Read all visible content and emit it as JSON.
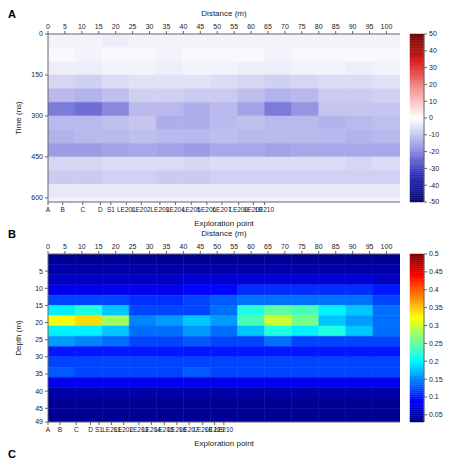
{
  "chart_data": [
    {
      "type": "heatmap",
      "title": "A",
      "x_label": "Distance (m)",
      "x2_label": "Exploration point",
      "y_label": "Time (ns)",
      "xlim": [
        0,
        104
      ],
      "xticks": [
        0,
        5,
        10,
        15,
        20,
        25,
        30,
        35,
        40,
        45,
        50,
        55,
        60,
        65,
        70,
        75,
        80,
        85,
        90,
        95,
        100
      ],
      "x2ticks": [
        {
          "value": 0,
          "label": "A"
        },
        {
          "value": 7,
          "label": "B"
        },
        {
          "value": 16.6,
          "label": "C"
        },
        {
          "value": 25,
          "label": "D"
        },
        {
          "value": 30,
          "label": "S1"
        },
        {
          "value": 37.4,
          "label": "LE201"
        },
        {
          "value": 44.5,
          "label": "LE202"
        },
        {
          "value": 53.4,
          "label": "LE203"
        },
        {
          "value": 60.8,
          "label": "LE204"
        },
        {
          "value": 68.4,
          "label": "LE205"
        },
        {
          "value": 75.8,
          "label": "LE206"
        },
        {
          "value": 83,
          "label": "LE207"
        },
        {
          "value": 91,
          "label": "LE208"
        },
        {
          "value": 98,
          "label": "LE209"
        },
        {
          "value": 103.4,
          "label": "LE210"
        }
      ],
      "ylim": [
        0,
        615
      ],
      "yticks": [
        0,
        150,
        300,
        450,
        600
      ],
      "x_bins": [
        0,
        8,
        16,
        24,
        32,
        40,
        48,
        56,
        64,
        72,
        80,
        88,
        96,
        104
      ],
      "y_bins": [
        0,
        50,
        100,
        150,
        200,
        250,
        300,
        350,
        400,
        450,
        500,
        550,
        600,
        615
      ],
      "cells": [
        [
          -2,
          -2,
          -3,
          -2,
          -2,
          -2,
          -2,
          -2,
          -2,
          -2,
          -2,
          -2,
          -2
        ],
        [
          -1,
          -2,
          -1,
          -1,
          -2,
          -1,
          -1,
          -1,
          -2,
          -1,
          -1,
          -1,
          -1
        ],
        [
          -3,
          -3,
          -2,
          -2,
          -3,
          -2,
          -2,
          -3,
          -3,
          -2,
          -2,
          -3,
          -2
        ],
        [
          -7,
          -8,
          -6,
          -5,
          -5,
          -5,
          -6,
          -7,
          -8,
          -7,
          -6,
          -6,
          -5
        ],
        [
          -12,
          -13,
          -11,
          -8,
          -8,
          -9,
          -9,
          -11,
          -13,
          -12,
          -9,
          -9,
          -8
        ],
        [
          -22,
          -24,
          -20,
          -12,
          -12,
          -14,
          -12,
          -16,
          -22,
          -18,
          -10,
          -10,
          -10
        ],
        [
          -12,
          -12,
          -11,
          -10,
          -14,
          -14,
          -12,
          -11,
          -12,
          -12,
          -13,
          -12,
          -11
        ],
        [
          -13,
          -12,
          -12,
          -11,
          -12,
          -12,
          -11,
          -12,
          -12,
          -12,
          -12,
          -13,
          -12
        ],
        [
          -17,
          -17,
          -16,
          -15,
          -16,
          -17,
          -15,
          -15,
          -16,
          -15,
          -15,
          -15,
          -15
        ],
        [
          -7,
          -7,
          -6,
          -6,
          -6,
          -7,
          -6,
          -6,
          -6,
          -6,
          -6,
          -7,
          -6
        ],
        [
          -9,
          -9,
          -8,
          -8,
          -9,
          -9,
          -8,
          -8,
          -8,
          -8,
          -8,
          -8,
          -8
        ],
        [
          -4,
          -4,
          -4,
          -4,
          -4,
          -4,
          -4,
          -4,
          -4,
          -4,
          -4,
          -4,
          -4
        ],
        [
          -2,
          -2,
          -2,
          -2,
          -2,
          -2,
          -2,
          -2,
          -2,
          -2,
          -2,
          -2,
          -2
        ]
      ],
      "colorbar": {
        "lim": [
          -50,
          50
        ],
        "ticks": [
          50,
          40,
          30,
          20,
          10,
          0,
          -10,
          -20,
          -30,
          -40,
          -50
        ]
      }
    },
    {
      "type": "heatmap",
      "title": "B",
      "x_label": "Distance (m)",
      "x2_label": "Exploration point",
      "y_label": "Depth (m)",
      "xlim": [
        0,
        104
      ],
      "xticks": [
        0,
        5,
        10,
        15,
        20,
        25,
        30,
        35,
        40,
        45,
        50,
        55,
        60,
        65,
        70,
        75,
        80,
        85,
        90,
        95,
        100
      ],
      "x2ticks": [
        {
          "value": 0,
          "label": "A"
        },
        {
          "value": 7,
          "label": "B"
        },
        {
          "value": 16.6,
          "label": "C"
        },
        {
          "value": 25,
          "label": "D"
        },
        {
          "value": 30,
          "label": "S1"
        },
        {
          "value": 37.4,
          "label": "LE201"
        },
        {
          "value": 44.5,
          "label": "LE202"
        },
        {
          "value": 53.4,
          "label": "LE203"
        },
        {
          "value": 60.8,
          "label": "LE204"
        },
        {
          "value": 68.4,
          "label": "LE205"
        },
        {
          "value": 75.8,
          "label": "LE206"
        },
        {
          "value": 83,
          "label": "LE207"
        },
        {
          "value": 91,
          "label": "LE208"
        },
        {
          "value": 98,
          "label": "LE209"
        },
        {
          "value": 103.4,
          "label": "LE210"
        }
      ],
      "ylim": [
        0,
        49
      ],
      "yticks": [
        5,
        10,
        15,
        20,
        25,
        30,
        35,
        40,
        45,
        49
      ],
      "x_bins": [
        0,
        8,
        16,
        24,
        32,
        40,
        48,
        56,
        64,
        72,
        80,
        88,
        96,
        104
      ],
      "y_bins": [
        0,
        3,
        6,
        9,
        12,
        15,
        18,
        21,
        24,
        27,
        30,
        33,
        36,
        39,
        42,
        45,
        49
      ],
      "cells": [
        [
          0.04,
          0.04,
          0.04,
          0.04,
          0.04,
          0.04,
          0.04,
          0.04,
          0.04,
          0.04,
          0.04,
          0.04,
          0.04
        ],
        [
          0.05,
          0.05,
          0.05,
          0.05,
          0.05,
          0.05,
          0.05,
          0.05,
          0.05,
          0.05,
          0.05,
          0.05,
          0.05
        ],
        [
          0.06,
          0.06,
          0.06,
          0.06,
          0.06,
          0.07,
          0.07,
          0.07,
          0.07,
          0.07,
          0.07,
          0.07,
          0.06
        ],
        [
          0.08,
          0.08,
          0.08,
          0.08,
          0.08,
          0.09,
          0.09,
          0.11,
          0.11,
          0.11,
          0.11,
          0.11,
          0.1
        ],
        [
          0.12,
          0.12,
          0.12,
          0.11,
          0.11,
          0.12,
          0.13,
          0.14,
          0.14,
          0.14,
          0.14,
          0.14,
          0.12
        ],
        [
          0.2,
          0.22,
          0.18,
          0.12,
          0.12,
          0.12,
          0.14,
          0.22,
          0.25,
          0.24,
          0.2,
          0.18,
          0.14
        ],
        [
          0.32,
          0.34,
          0.28,
          0.15,
          0.16,
          0.18,
          0.16,
          0.24,
          0.3,
          0.26,
          0.18,
          0.16,
          0.14
        ],
        [
          0.2,
          0.2,
          0.18,
          0.14,
          0.14,
          0.16,
          0.14,
          0.18,
          0.22,
          0.2,
          0.22,
          0.18,
          0.14
        ],
        [
          0.16,
          0.15,
          0.14,
          0.12,
          0.12,
          0.13,
          0.12,
          0.12,
          0.14,
          0.12,
          0.12,
          0.12,
          0.12
        ],
        [
          0.1,
          0.1,
          0.1,
          0.1,
          0.1,
          0.1,
          0.1,
          0.1,
          0.1,
          0.1,
          0.1,
          0.1,
          0.1
        ],
        [
          0.12,
          0.12,
          0.12,
          0.12,
          0.12,
          0.12,
          0.12,
          0.12,
          0.12,
          0.12,
          0.12,
          0.12,
          0.12
        ],
        [
          0.13,
          0.12,
          0.12,
          0.12,
          0.12,
          0.13,
          0.12,
          0.12,
          0.12,
          0.12,
          0.12,
          0.12,
          0.12
        ],
        [
          0.08,
          0.08,
          0.08,
          0.08,
          0.08,
          0.08,
          0.08,
          0.08,
          0.08,
          0.08,
          0.08,
          0.08,
          0.08
        ],
        [
          0.05,
          0.05,
          0.05,
          0.05,
          0.05,
          0.05,
          0.05,
          0.05,
          0.05,
          0.05,
          0.05,
          0.05,
          0.05
        ],
        [
          0.04,
          0.04,
          0.04,
          0.04,
          0.04,
          0.04,
          0.04,
          0.04,
          0.04,
          0.04,
          0.04,
          0.04,
          0.04
        ],
        [
          0.04,
          0.04,
          0.04,
          0.04,
          0.04,
          0.04,
          0.04,
          0.04,
          0.04,
          0.04,
          0.04,
          0.04,
          0.04
        ]
      ],
      "colorbar": {
        "lim": [
          0.03,
          0.5
        ],
        "ticks": [
          0.5,
          0.45,
          0.4,
          0.35,
          0.3,
          0.25,
          0.2,
          0.15,
          0.1,
          0.05
        ]
      }
    },
    {
      "type": "empty",
      "title": "C"
    }
  ]
}
